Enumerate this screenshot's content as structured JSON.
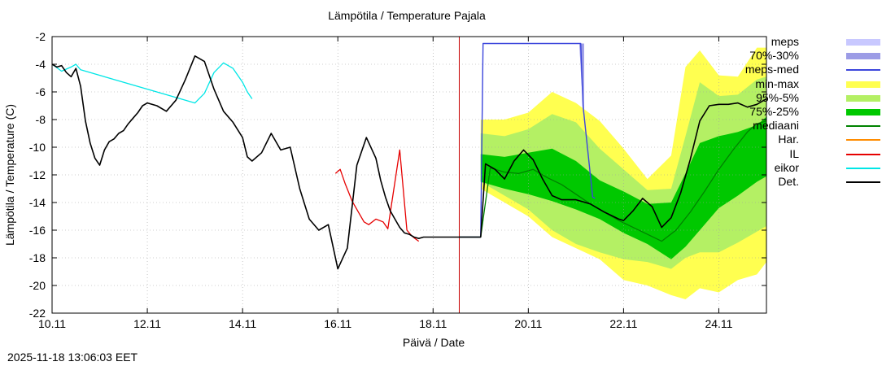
{
  "chart_data": {
    "type": "line",
    "title": "Lämpötila / Temperature   Pajala",
    "xlabel": "Päivä / Date",
    "ylabel": "Lämpötila / Temperature (C)",
    "ylim": [
      -22,
      -2
    ],
    "xlim": [
      0,
      15.0
    ],
    "y_ticks": [
      -2,
      -4,
      -6,
      -8,
      -10,
      -12,
      -14,
      -16,
      -18,
      -20,
      -22
    ],
    "x_ticks": [
      {
        "x": 0,
        "label": "10.11"
      },
      {
        "x": 2,
        "label": "12.11"
      },
      {
        "x": 4,
        "label": "14.11"
      },
      {
        "x": 6,
        "label": "16.11"
      },
      {
        "x": 8,
        "label": "18.11"
      },
      {
        "x": 10,
        "label": "20.11"
      },
      {
        "x": 12,
        "label": "22.11"
      },
      {
        "x": 14,
        "label": "24.11"
      }
    ],
    "grid": true,
    "now_marker_x": 8.55,
    "legend": [
      {
        "label": "meps",
        "color": "#c8c8ff",
        "kind": "band"
      },
      {
        "label": "70%-30%",
        "color": "#9c9ce6",
        "kind": "band"
      },
      {
        "label": "meps-med",
        "color": "#3c46dc",
        "kind": "line"
      },
      {
        "label": "min-max",
        "color": "#ffff50",
        "kind": "band"
      },
      {
        "label": "95%-5%",
        "color": "#b4f064",
        "kind": "band"
      },
      {
        "label": "75%-25%",
        "color": "#00c800",
        "kind": "band"
      },
      {
        "label": "mediaani",
        "color": "#008200",
        "kind": "line"
      },
      {
        "label": "Har.",
        "color": "#ff8c00",
        "kind": "line"
      },
      {
        "label": "IL",
        "color": "#e60000",
        "kind": "line"
      },
      {
        "label": "eikor",
        "color": "#00e6e6",
        "kind": "line"
      },
      {
        "label": "Det.",
        "color": "#000000",
        "kind": "line"
      }
    ],
    "series": [
      {
        "name": "Det.",
        "color": "#000000",
        "x": [
          0,
          0.1,
          0.2,
          0.3,
          0.4,
          0.5,
          0.6,
          0.7,
          0.8,
          0.9,
          1.0,
          1.1,
          1.2,
          1.3,
          1.4,
          1.5,
          1.6,
          1.7,
          1.8,
          1.9,
          2.0,
          2.2,
          2.4,
          2.6,
          2.8,
          3.0,
          3.2,
          3.4,
          3.6,
          3.8,
          4.0,
          4.1,
          4.2,
          4.4,
          4.6,
          4.8,
          5.0,
          5.2,
          5.4,
          5.6,
          5.8,
          6.0,
          6.2,
          6.4,
          6.6,
          6.8,
          6.9,
          7.0,
          7.1,
          7.2,
          7.3,
          7.4,
          7.5,
          7.6,
          7.7,
          7.8,
          8.0,
          8.2,
          8.4,
          8.5,
          8.55,
          9.0,
          9.1,
          9.3,
          9.5,
          9.7,
          9.9,
          10.1,
          10.3,
          10.5,
          10.7,
          11.0,
          11.3,
          11.6,
          11.9,
          12.0,
          12.2,
          12.4,
          12.6,
          12.8,
          13.0,
          13.2,
          13.4,
          13.6,
          13.8,
          14.0,
          14.2,
          14.4,
          14.6,
          14.8,
          15.0
        ],
        "y": [
          -4.0,
          -4.2,
          -4.1,
          -4.6,
          -4.9,
          -4.3,
          -5.6,
          -8.1,
          -9.7,
          -10.8,
          -11.3,
          -10.2,
          -9.6,
          -9.4,
          -9.0,
          -8.8,
          -8.3,
          -7.9,
          -7.5,
          -7.0,
          -6.8,
          -7.0,
          -7.4,
          -6.6,
          -5.1,
          -3.4,
          -3.8,
          -5.8,
          -7.4,
          -8.2,
          -9.3,
          -10.7,
          -11.0,
          -10.4,
          -9.0,
          -10.2,
          -10.0,
          -13.0,
          -15.2,
          -16.0,
          -15.6,
          -18.8,
          -17.3,
          -11.3,
          -9.3,
          -10.8,
          -12.4,
          -13.6,
          -14.6,
          -15.2,
          -15.8,
          -16.2,
          -16.3,
          -16.5,
          -16.6,
          -16.5,
          -16.5,
          -16.5,
          -16.5,
          -16.5,
          -16.5,
          -16.5,
          -11.2,
          -11.6,
          -12.3,
          -11.0,
          -10.2,
          -10.9,
          -12.3,
          -13.5,
          -13.8,
          -13.8,
          -14.1,
          -14.7,
          -15.2,
          -15.3,
          -14.6,
          -13.7,
          -14.3,
          -15.8,
          -15.1,
          -13.3,
          -10.9,
          -8.1,
          -7.0,
          -6.9,
          -6.9,
          -6.8,
          -7.1,
          -6.9,
          -6.5
        ]
      },
      {
        "name": "mediaani",
        "color": "#008200",
        "x": [
          8.55,
          9.0,
          9.2,
          9.5,
          9.8,
          10.1,
          10.4,
          10.7,
          11.0,
          11.3,
          11.6,
          11.9,
          12.2,
          12.5,
          12.8,
          13.1,
          13.4,
          13.7,
          14.0,
          14.3,
          14.6,
          14.8,
          15.0
        ],
        "y": [
          -16.5,
          -16.5,
          -11.5,
          -11.8,
          -11.9,
          -11.6,
          -12.2,
          -12.7,
          -13.4,
          -14.1,
          -14.7,
          -15.3,
          -15.8,
          -16.3,
          -16.8,
          -16.0,
          -14.7,
          -13.2,
          -11.6,
          -10.2,
          -8.9,
          -8.3,
          -8.1
        ]
      },
      {
        "name": "eikor",
        "color": "#00e6e6",
        "x": [
          0,
          0.2,
          0.4,
          0.5,
          0.6,
          3.0,
          3.2,
          3.4,
          3.6,
          3.8,
          4.0,
          4.1,
          4.2
        ],
        "y": [
          -4.0,
          -4.5,
          -4.2,
          -4.0,
          -4.4,
          -6.8,
          -6.1,
          -4.6,
          -3.9,
          -4.3,
          -5.3,
          -6.0,
          -6.5
        ]
      },
      {
        "name": "IL",
        "color": "#e60000",
        "x": [
          5.95,
          6.05,
          6.15,
          6.3,
          6.45,
          6.55,
          6.65,
          6.8,
          6.95,
          7.05,
          7.3,
          7.45,
          7.55,
          7.62,
          7.7
        ],
        "y": [
          -11.9,
          -11.6,
          -12.6,
          -13.9,
          -14.8,
          -15.4,
          -15.6,
          -15.2,
          -15.4,
          -15.9,
          -10.2,
          -16.0,
          -16.4,
          -16.6,
          -16.8
        ]
      },
      {
        "name": "meps-med",
        "color": "#3c46dc",
        "x": [
          8.55,
          9.0,
          9.05,
          11.1,
          11.15,
          11.35,
          11.4
        ],
        "y": [
          -16.5,
          -16.5,
          -2.5,
          -2.5,
          -7.0,
          -13.6,
          -13.7
        ]
      }
    ],
    "bands": [
      {
        "name": "min-max",
        "color": "#ffff50",
        "x": [
          9.0,
          9.5,
          10.0,
          10.5,
          11.0,
          11.5,
          12.0,
          12.5,
          13.0,
          13.3,
          13.6,
          14.0,
          14.4,
          14.8,
          15.0
        ],
        "lo": [
          -13.0,
          -14.0,
          -15.0,
          -16.5,
          -17.3,
          -18.1,
          -19.6,
          -20.0,
          -20.7,
          -21.0,
          -20.2,
          -20.5,
          -19.6,
          -19.2,
          -18.3
        ],
        "hi": [
          -8.0,
          -8.0,
          -7.5,
          -6.0,
          -6.8,
          -8.1,
          -10.1,
          -12.3,
          -10.6,
          -4.2,
          -3.0,
          -4.8,
          -4.9,
          -2.8,
          -2.8
        ]
      },
      {
        "name": "95%-5%",
        "color": "#b4f064",
        "x": [
          9.0,
          9.5,
          10.0,
          10.5,
          11.0,
          11.5,
          12.0,
          12.5,
          13.0,
          13.3,
          13.6,
          14.0,
          14.4,
          14.8,
          15.0
        ],
        "lo": [
          -12.5,
          -13.5,
          -14.5,
          -16.0,
          -17.0,
          -17.6,
          -18.1,
          -18.3,
          -18.8,
          -18.0,
          -17.6,
          -17.6,
          -16.9,
          -16.1,
          -15.7
        ],
        "hi": [
          -9.0,
          -9.2,
          -8.7,
          -7.6,
          -8.2,
          -10.1,
          -11.6,
          -13.1,
          -13.0,
          -9.2,
          -5.3,
          -6.3,
          -6.2,
          -5.1,
          -4.9
        ]
      },
      {
        "name": "75%-25%",
        "color": "#00c800",
        "x": [
          9.0,
          9.5,
          10.0,
          10.5,
          11.0,
          11.5,
          12.0,
          12.5,
          13.0,
          13.3,
          13.6,
          14.0,
          14.4,
          14.8,
          15.0
        ],
        "lo": [
          -12.5,
          -13.0,
          -13.4,
          -13.9,
          -14.5,
          -15.2,
          -16.2,
          -17.0,
          -18.1,
          -17.2,
          -16.0,
          -14.4,
          -13.5,
          -12.5,
          -12.1
        ],
        "hi": [
          -10.5,
          -10.7,
          -10.4,
          -10.1,
          -11.0,
          -12.4,
          -13.2,
          -14.1,
          -14.0,
          -11.9,
          -9.7,
          -9.2,
          -8.9,
          -8.4,
          -7.8
        ]
      },
      {
        "name": "meps",
        "color": "#c8c8ff",
        "x": [
          11.05,
          11.07,
          11.15,
          11.17
        ],
        "lo": [
          -2.5,
          -2.5,
          -7.5,
          -7.5
        ],
        "hi": [
          -2.5,
          -2.5,
          -2.5,
          -2.5
        ]
      },
      {
        "name": "70%-30%",
        "color": "#9c9ce6",
        "x": [
          11.05,
          11.07,
          11.15,
          11.17
        ],
        "lo": [
          -2.5,
          -2.5,
          -7.3,
          -7.3
        ],
        "hi": [
          -2.5,
          -2.5,
          -2.5,
          -2.5
        ]
      }
    ],
    "timestamp": "2025-11-18 13:06:03 EET"
  }
}
